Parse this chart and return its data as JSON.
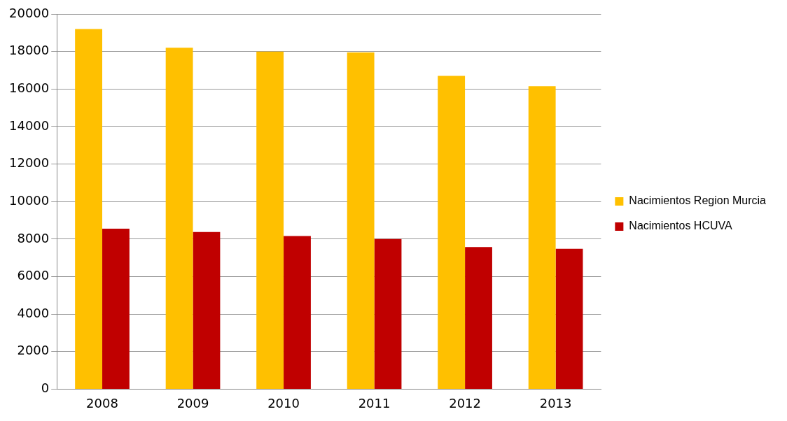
{
  "chart_data": {
    "type": "bar",
    "categories": [
      "2008",
      "2009",
      "2010",
      "2011",
      "2012",
      "2013"
    ],
    "series": [
      {
        "name": "Nacimientos Region Murcia",
        "color": "#ffc000",
        "values": [
          19200,
          18200,
          18000,
          17950,
          16700,
          16150
        ]
      },
      {
        "name": "Nacimientos HCUVA",
        "color": "#c00000",
        "values": [
          8550,
          8380,
          8160,
          8000,
          7570,
          7480
        ]
      }
    ],
    "ylim": [
      0,
      20000
    ],
    "yticks": [
      0,
      2000,
      4000,
      6000,
      8000,
      10000,
      12000,
      14000,
      16000,
      18000,
      20000
    ],
    "grid": "y",
    "legend": "right"
  }
}
